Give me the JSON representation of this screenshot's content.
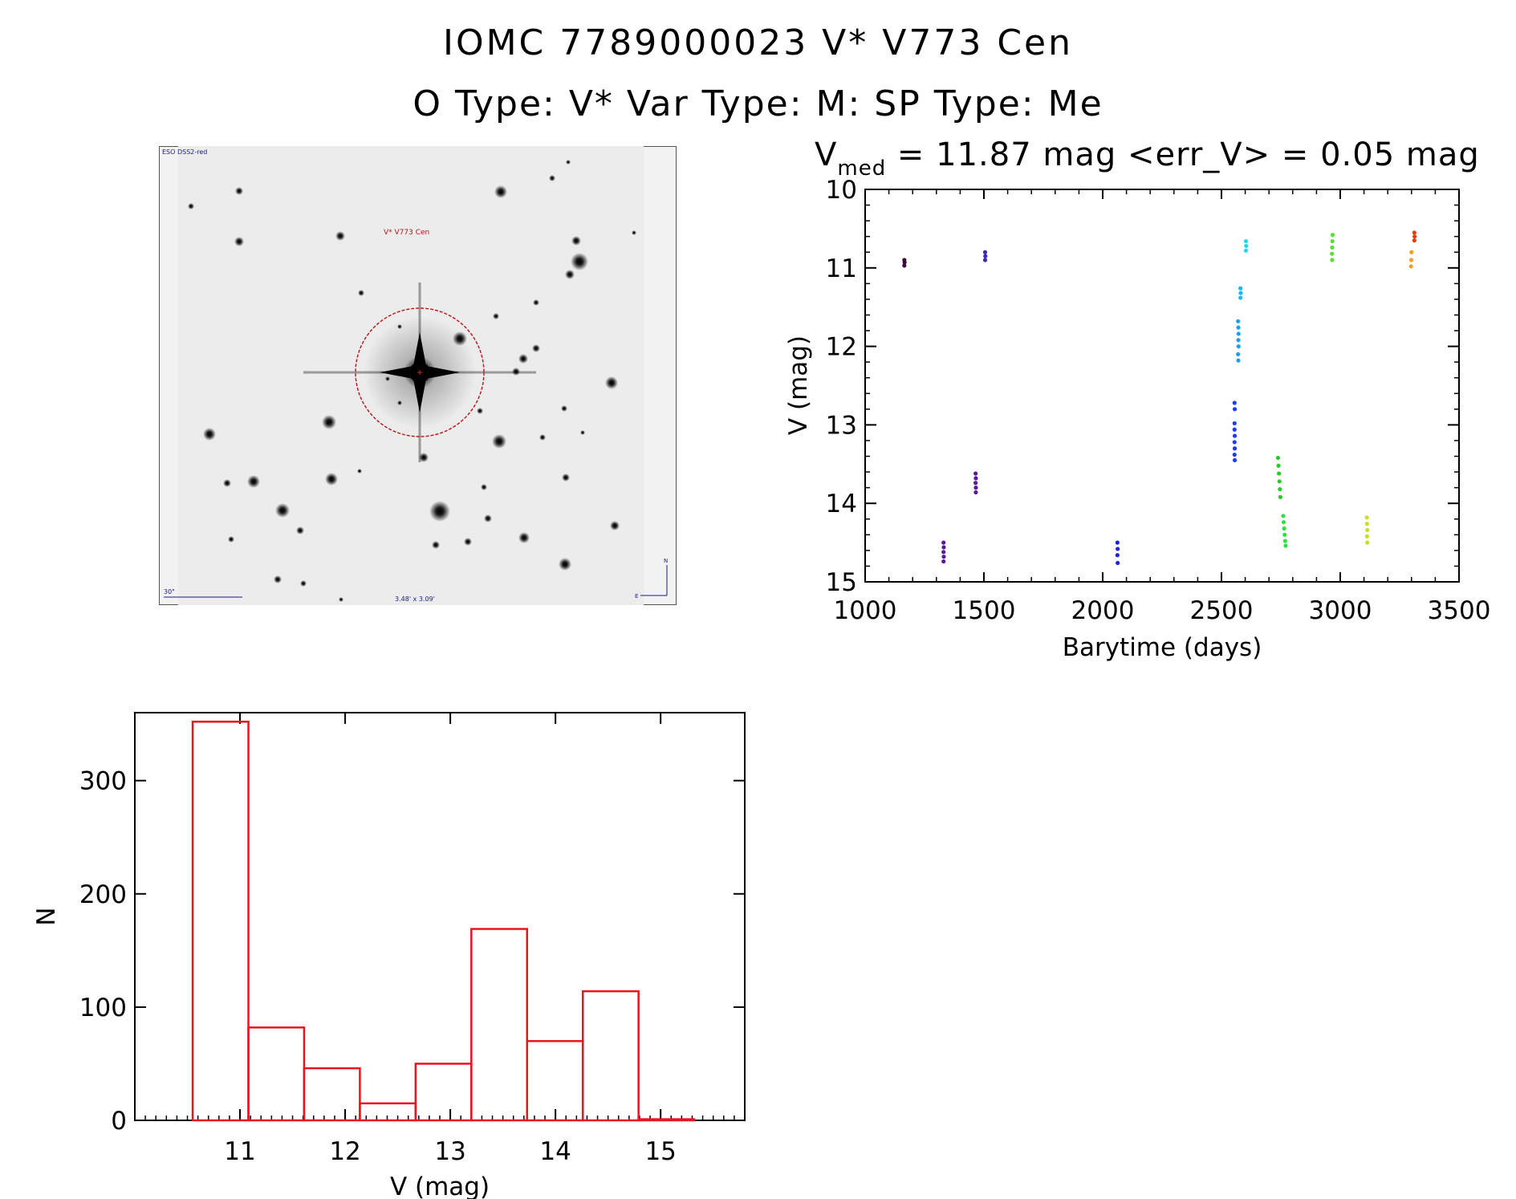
{
  "header": {
    "title_line1": "IOMC 7789000023   V* V773 Cen",
    "title_line2": "O Type: V*  Var Type: M:  SP Type: Me"
  },
  "image_panel": {
    "survey_label": "ESO DSS2-red",
    "target_label": "V* V773 Cen",
    "scale_label": "30\"",
    "fov_label": "3.48' x 3.09'",
    "north_label": "N",
    "east_label": "E"
  },
  "lightcurve": {
    "stat_v": "V",
    "stat_sub": "med",
    "stat_rest": " = 11.87 mag <err_V> = 0.05 mag"
  },
  "chart_data": [
    {
      "type": "scatter",
      "xlabel": "Barytime (days)",
      "ylabel": "V (mag)",
      "xlim": [
        1000,
        3500
      ],
      "ylim": [
        15,
        10
      ],
      "y_inverted": true,
      "x_ticks": [
        "1000",
        "1500",
        "2000",
        "2500",
        "3000",
        "3500"
      ],
      "y_ticks": [
        "10",
        "11",
        "12",
        "13",
        "14",
        "15"
      ],
      "series": [
        {
          "color": "#3b0a3b",
          "points": [
            [
              1165,
              10.9
            ],
            [
              1166,
              10.93
            ],
            [
              1165,
              10.97
            ]
          ]
        },
        {
          "color": "#5a189a",
          "points": [
            [
              1330,
              14.5
            ],
            [
              1331,
              14.56
            ],
            [
              1330,
              14.62
            ],
            [
              1331,
              14.68
            ],
            [
              1330,
              14.74
            ]
          ]
        },
        {
          "color": "#5a189a",
          "points": [
            [
              1465,
              13.62
            ],
            [
              1466,
              13.68
            ],
            [
              1465,
              13.74
            ],
            [
              1466,
              13.8
            ],
            [
              1466,
              13.86
            ]
          ]
        },
        {
          "color": "#3c2cb0",
          "points": [
            [
              1505,
              10.8
            ],
            [
              1506,
              10.85
            ],
            [
              1505,
              10.9
            ]
          ]
        },
        {
          "color": "#2222dd",
          "points": [
            [
              2062,
              14.5
            ],
            [
              2063,
              14.58
            ],
            [
              2062,
              14.66
            ],
            [
              2063,
              14.76
            ]
          ]
        },
        {
          "color": "#1e3cf0",
          "points": [
            [
              2555,
              12.72
            ],
            [
              2556,
              12.8
            ],
            [
              2555,
              12.98
            ],
            [
              2555,
              13.06
            ],
            [
              2556,
              13.14
            ],
            [
              2555,
              13.22
            ],
            [
              2556,
              13.3
            ],
            [
              2555,
              13.38
            ],
            [
              2556,
              13.45
            ]
          ]
        },
        {
          "color": "#1aa0f0",
          "points": [
            [
              2570,
              11.68
            ],
            [
              2571,
              11.76
            ],
            [
              2572,
              11.84
            ],
            [
              2571,
              11.92
            ],
            [
              2572,
              12.0
            ],
            [
              2570,
              12.1
            ],
            [
              2571,
              12.18
            ]
          ]
        },
        {
          "color": "#1ab8f0",
          "points": [
            [
              2580,
              11.26
            ],
            [
              2581,
              11.32
            ],
            [
              2580,
              11.38
            ]
          ]
        },
        {
          "color": "#28d8e8",
          "points": [
            [
              2603,
              10.66
            ],
            [
              2604,
              10.72
            ],
            [
              2603,
              10.78
            ]
          ]
        },
        {
          "color": "#2ec82e",
          "points": [
            [
              2738,
              13.42
            ],
            [
              2740,
              13.52
            ],
            [
              2742,
              13.62
            ],
            [
              2744,
              13.72
            ],
            [
              2746,
              13.82
            ],
            [
              2748,
              13.92
            ]
          ]
        },
        {
          "color": "#2ee040",
          "points": [
            [
              2760,
              14.16
            ],
            [
              2762,
              14.24
            ],
            [
              2764,
              14.32
            ],
            [
              2766,
              14.4
            ],
            [
              2768,
              14.48
            ],
            [
              2770,
              14.54
            ]
          ]
        },
        {
          "color": "#5ae030",
          "points": [
            [
              2968,
              10.58
            ],
            [
              2967,
              10.66
            ],
            [
              2966,
              10.74
            ],
            [
              2965,
              10.82
            ],
            [
              2966,
              10.9
            ]
          ]
        },
        {
          "color": "#c8e020",
          "points": [
            [
              3112,
              14.18
            ],
            [
              3113,
              14.26
            ],
            [
              3114,
              14.34
            ],
            [
              3113,
              14.42
            ],
            [
              3114,
              14.5
            ]
          ]
        },
        {
          "color": "#f0a020",
          "points": [
            [
              3300,
              10.8
            ],
            [
              3299,
              10.9
            ],
            [
              3298,
              10.98
            ]
          ]
        },
        {
          "color": "#ee3810",
          "points": [
            [
              3312,
              10.55
            ],
            [
              3313,
              10.6
            ],
            [
              3312,
              10.65
            ]
          ]
        }
      ]
    },
    {
      "type": "bar",
      "subtype": "histogram",
      "xlabel": "V (mag)",
      "ylabel": "N",
      "xlim": [
        10.0,
        15.8
      ],
      "ylim": [
        0,
        360
      ],
      "x_ticks": [
        "11",
        "12",
        "13",
        "14",
        "15"
      ],
      "y_ticks": [
        "0",
        "100",
        "200",
        "300"
      ],
      "bar_color": "#e8141e",
      "bin_edges": [
        10.55,
        11.08,
        11.61,
        12.14,
        12.67,
        13.2,
        13.73,
        14.26,
        14.79,
        15.32
      ],
      "values": [
        352,
        82,
        46,
        15,
        50,
        169,
        70,
        114,
        1
      ]
    }
  ]
}
